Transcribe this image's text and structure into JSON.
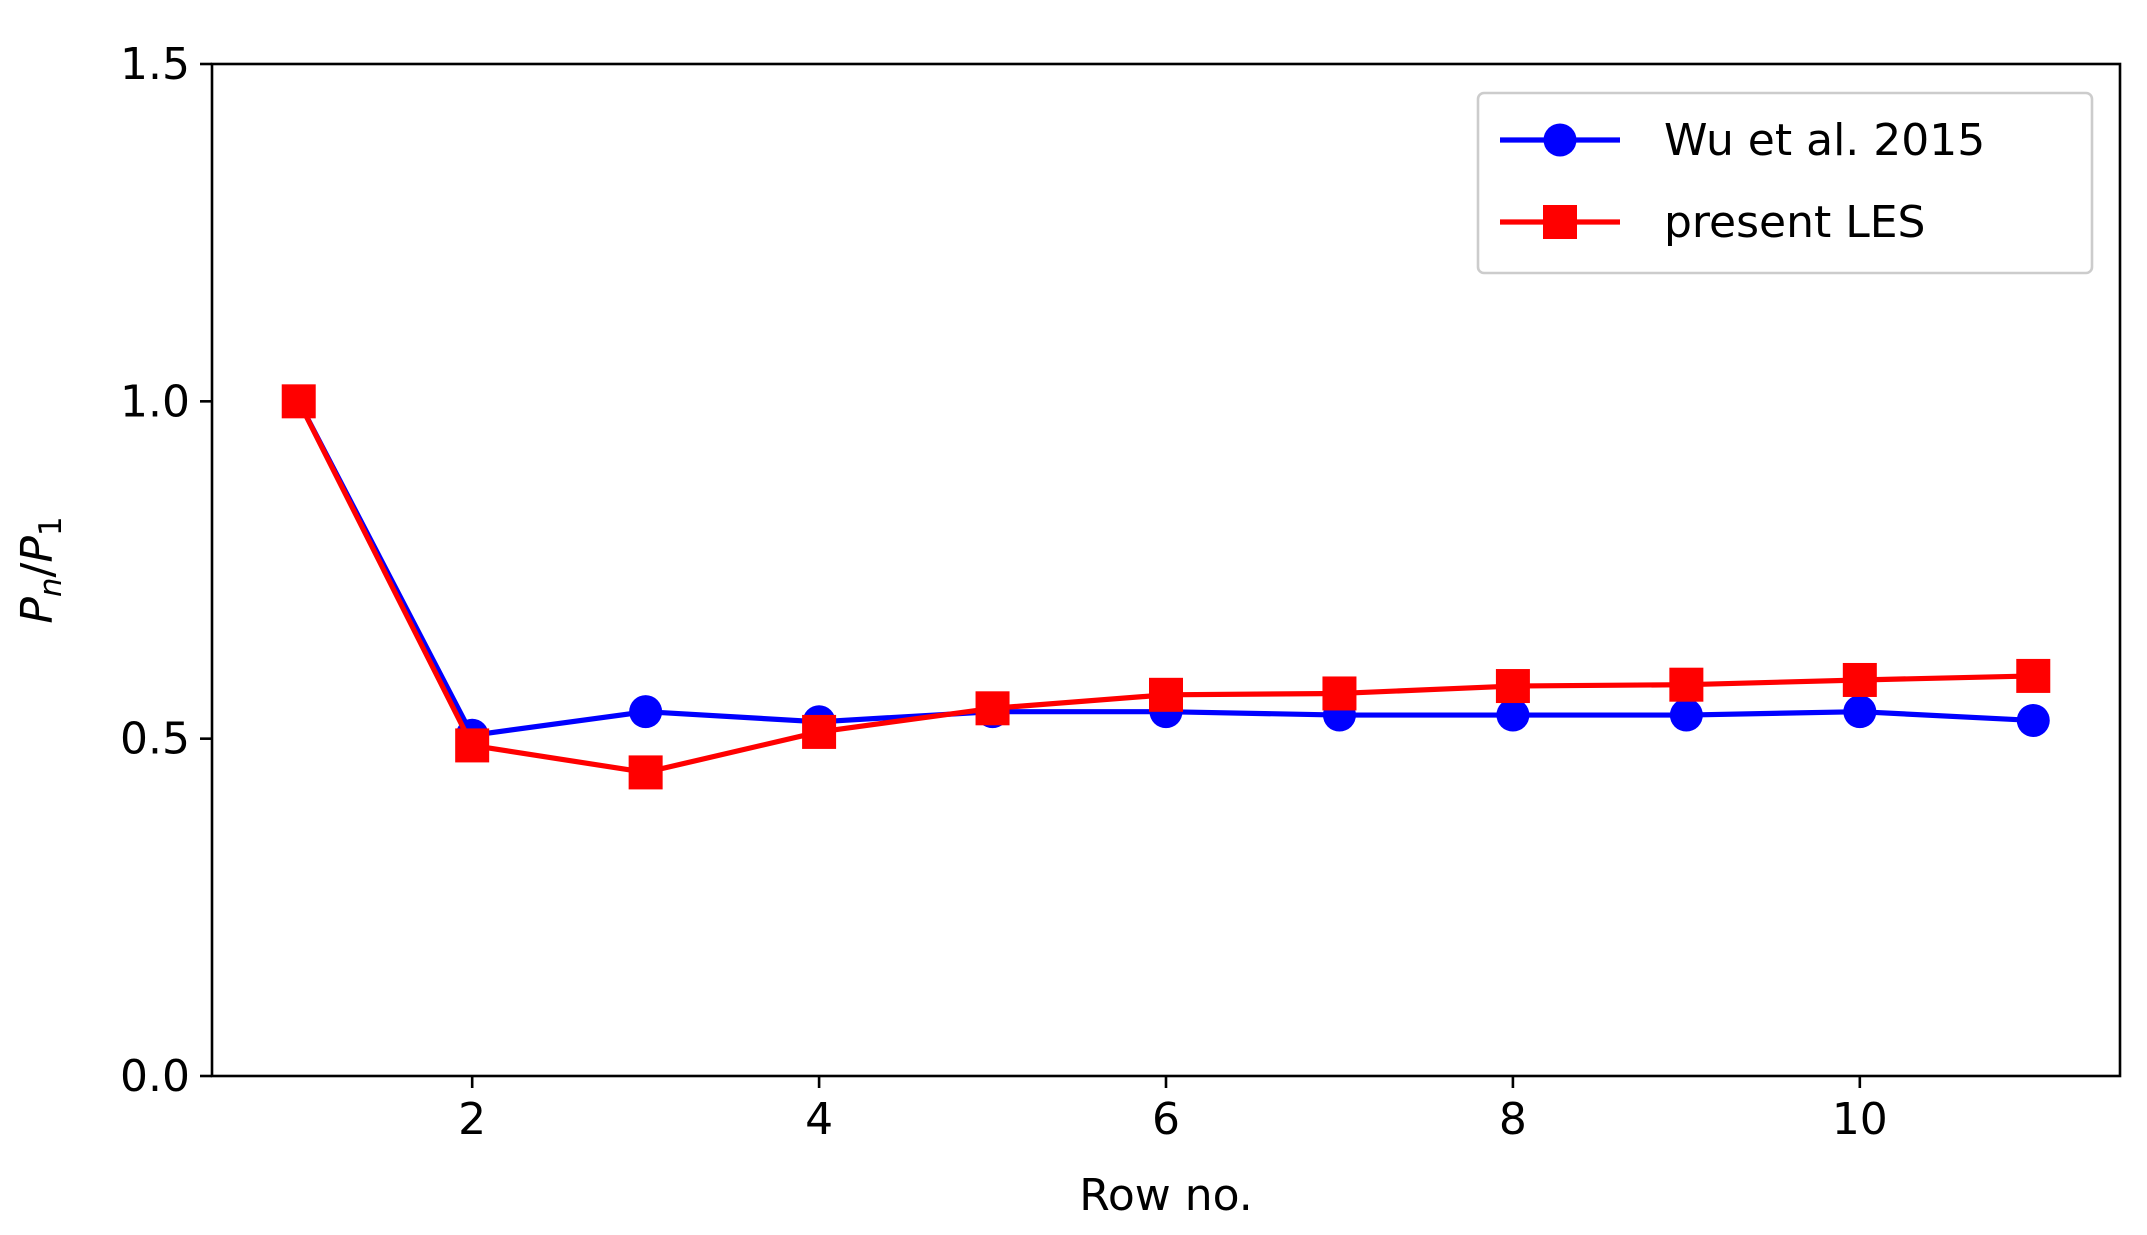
{
  "chart_data": {
    "type": "line",
    "xlabel": "Row no.",
    "ylabel": "Pn/P1",
    "ylabel_parts": {
      "base1": "P",
      "sub1": "n",
      "sep": "/",
      "base2": "P",
      "sub2": "1"
    },
    "xlim": [
      0.5,
      11.5
    ],
    "ylim": [
      0.0,
      1.5
    ],
    "xticks": [
      2,
      4,
      6,
      8,
      10
    ],
    "xtick_labels": [
      "2",
      "4",
      "6",
      "8",
      "10"
    ],
    "yticks": [
      0.0,
      0.5,
      1.0,
      1.5
    ],
    "ytick_labels": [
      "0.0",
      "0.5",
      "1.0",
      "1.5"
    ],
    "grid": false,
    "legend_position": "top-right",
    "series": [
      {
        "name": "Wu et al. 2015",
        "color": "#0000ff",
        "marker": "circle",
        "x": [
          1,
          2,
          3,
          4,
          5,
          6,
          7,
          8,
          9,
          10,
          11
        ],
        "y": [
          1.0,
          0.505,
          0.54,
          0.525,
          0.54,
          0.54,
          0.535,
          0.535,
          0.535,
          0.54,
          0.527
        ]
      },
      {
        "name": "present LES",
        "color": "#ff0000",
        "marker": "square",
        "x": [
          1,
          2,
          3,
          4,
          5,
          6,
          7,
          8,
          9,
          10,
          11
        ],
        "y": [
          1.0,
          0.49,
          0.45,
          0.51,
          0.545,
          0.565,
          0.567,
          0.578,
          0.58,
          0.587,
          0.593
        ]
      }
    ]
  }
}
